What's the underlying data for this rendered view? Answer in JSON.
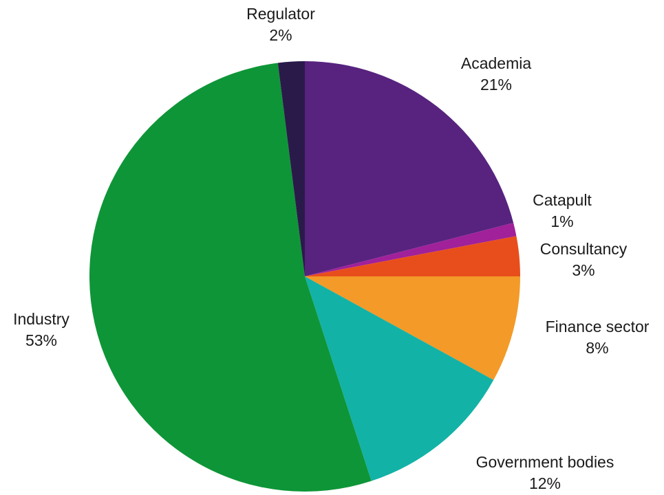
{
  "chart_data": {
    "type": "pie",
    "title": "",
    "start_angle_deg": 0,
    "direction": "clockwise",
    "slices": [
      {
        "label": "Academia",
        "value": 21,
        "value_label": "21%",
        "color": "#57237f"
      },
      {
        "label": "Catapult",
        "value": 1,
        "value_label": "1%",
        "color": "#a0219a"
      },
      {
        "label": "Consultancy",
        "value": 3,
        "value_label": "3%",
        "color": "#e84e1c"
      },
      {
        "label": "Finance sector",
        "value": 8,
        "value_label": "8%",
        "color": "#f39a28"
      },
      {
        "label": "Government  bodies",
        "value": 12,
        "value_label": "12%",
        "color": "#13b2a7"
      },
      {
        "label": "Industry",
        "value": 53,
        "value_label": "53%",
        "color": "#0e9537"
      },
      {
        "label": "Regulator",
        "value": 2,
        "value_label": "2%",
        "color": "#2a1a4a"
      }
    ]
  }
}
